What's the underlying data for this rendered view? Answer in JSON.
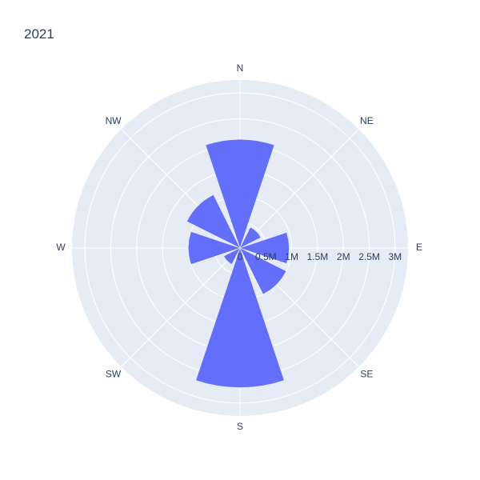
{
  "chart_data": {
    "type": "barpolar",
    "title": "2021",
    "directions": [
      "N",
      "NE",
      "E",
      "SE",
      "S",
      "SW",
      "W",
      "NW"
    ],
    "values": [
      2100000,
      450000,
      950000,
      1000000,
      2700000,
      350000,
      1000000,
      1150000
    ],
    "radial_range": [
      0,
      3250000
    ],
    "radial_ticks": [
      {
        "value": 0,
        "label": "0"
      },
      {
        "value": 500000,
        "label": "0.5M"
      },
      {
        "value": 1000000,
        "label": "1M"
      },
      {
        "value": 1500000,
        "label": "1.5M"
      },
      {
        "value": 2000000,
        "label": "2M"
      },
      {
        "value": 2500000,
        "label": "2.5M"
      },
      {
        "value": 3000000,
        "label": "3M"
      }
    ],
    "bar_color": "#636efa",
    "background_color": "#e5ecf6",
    "grid": true
  }
}
